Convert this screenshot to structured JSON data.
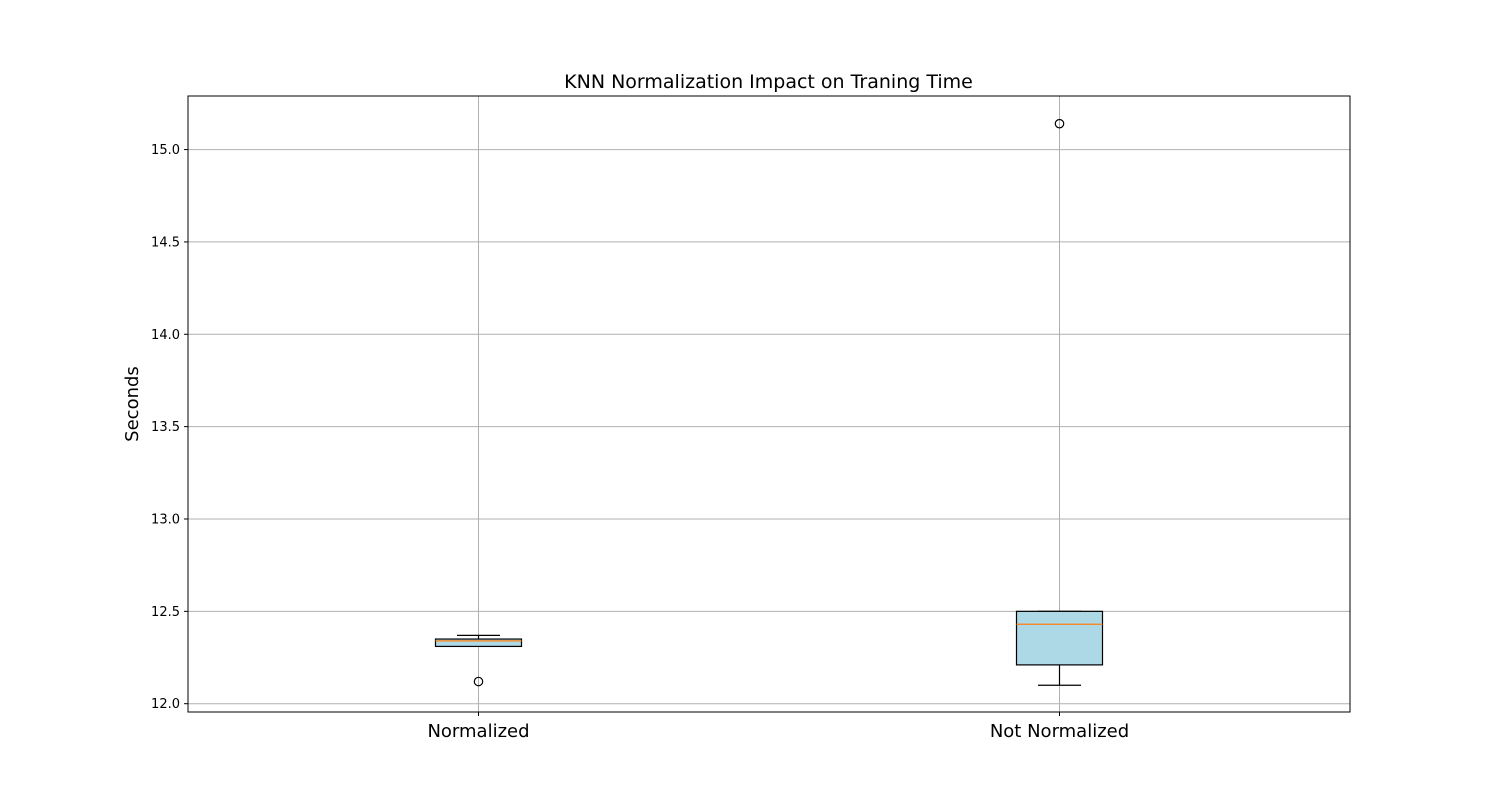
{
  "chart_data": {
    "type": "box",
    "title": "KNN Normalization Impact on Traning Time",
    "xlabel": "",
    "ylabel": "Seconds",
    "ylim": [
      11.955,
      15.29
    ],
    "yticks": [
      12.0,
      12.5,
      13.0,
      13.5,
      14.0,
      14.5,
      15.0
    ],
    "ytick_labels": [
      "12.0",
      "12.5",
      "13.0",
      "13.5",
      "14.0",
      "14.5",
      "15.0"
    ],
    "grid": true,
    "categories": [
      "Normalized",
      "Not Normalized"
    ],
    "boxes": [
      {
        "category": "Normalized",
        "whisker_low": 12.31,
        "q1": 12.31,
        "median": 12.34,
        "q3": 12.35,
        "whisker_high": 12.37,
        "outliers": [
          12.12
        ]
      },
      {
        "category": "Not Normalized",
        "whisker_low": 12.1,
        "q1": 12.21,
        "median": 12.43,
        "q3": 12.5,
        "whisker_high": 12.5,
        "outliers": [
          15.14
        ]
      }
    ],
    "box_color": "#add8e6",
    "median_color": "#ff7f0e",
    "grid_color": "#b0b0b0"
  }
}
